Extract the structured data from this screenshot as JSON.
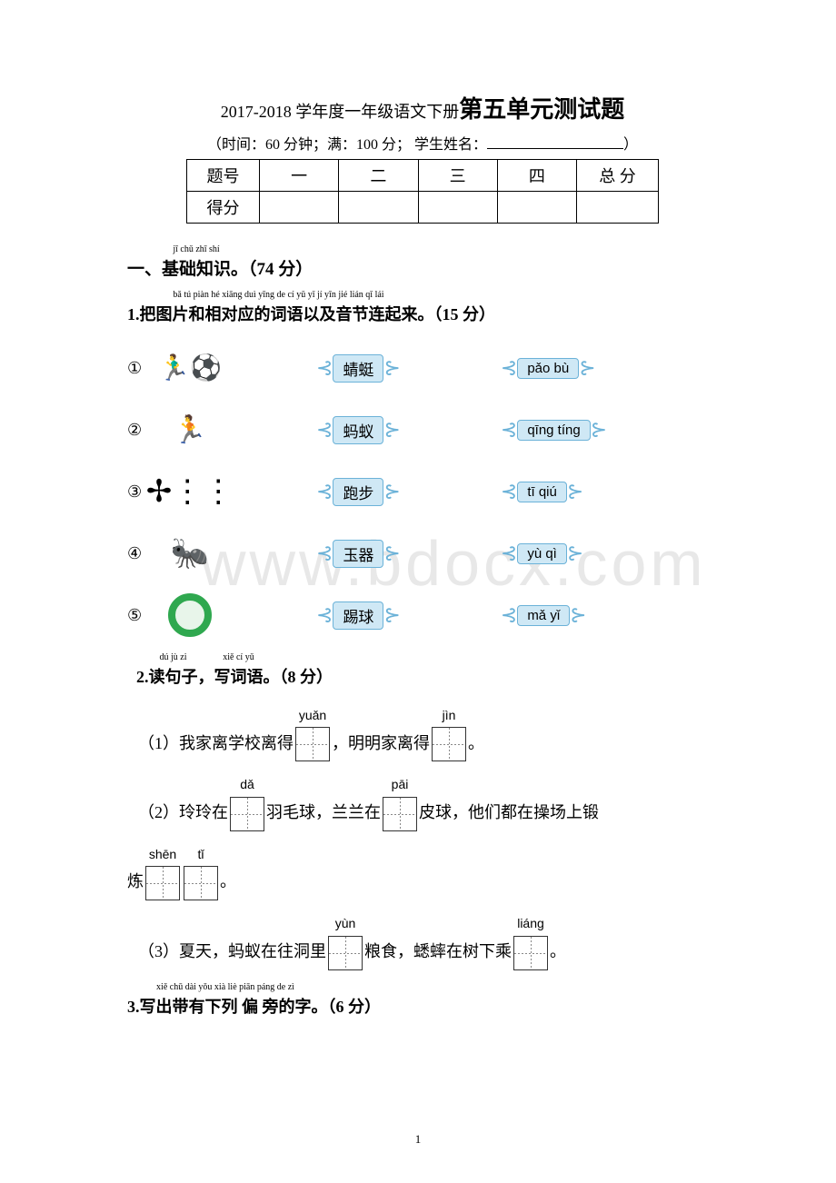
{
  "title_prefix": "2017-2018 学年度一年级语文下册",
  "title_main": "第五单元测试题",
  "subtitle_pre": "（时间：60 分钟；满：100 分；  学生姓名：",
  "subtitle_post": "）",
  "score_table": {
    "headers": [
      "题号",
      "一",
      "二",
      "三",
      "四",
      "总 分"
    ],
    "row2_label": "得分"
  },
  "section1": {
    "pinyin": "jī chǔ zhī shí",
    "text_pre": "一、",
    "text_main": "基础知识",
    "points": "。（74 分）"
  },
  "q1": {
    "pinyin": "bǎ tú piàn hé xiāng duì yīng de cí yǔ yǐ jí yīn jié lián qǐ lái",
    "text_pre": "1.",
    "text_main": "把图片和相对应的词语以及音节连起来",
    "points": "。（15 分）",
    "rows": [
      {
        "num": "①",
        "icon": "soccer",
        "word": "蜻蜓",
        "pinyin": "pǎo bù"
      },
      {
        "num": "②",
        "icon": "run",
        "word": "蚂蚁",
        "pinyin": "qīng tíng"
      },
      {
        "num": "③",
        "icon": "dragonfly",
        "word": "跑步",
        "pinyin": "tī qiú"
      },
      {
        "num": "④",
        "icon": "ant",
        "word": "玉器",
        "pinyin": "yù qì"
      },
      {
        "num": "⑤",
        "icon": "jade",
        "word": "踢球",
        "pinyin": "mǎ yǐ"
      }
    ]
  },
  "q2": {
    "pinyin_pre": "dú jù zi",
    "pinyin_post": "xiě cí yǔ",
    "text_pre": "2.",
    "text_a": "读句子",
    "comma": "，",
    "text_b": "写词语",
    "points": "。（8 分）",
    "s1": {
      "num": "（1）",
      "t1": "我家离学校离得",
      "b1": "yuǎn",
      "t2": " ，明明家离得",
      "b2": "jìn",
      "t3": " 。"
    },
    "s2": {
      "num": "（2）",
      "t1": "玲玲在",
      "b1": "dǎ",
      "t2": " 羽毛球，兰兰在",
      "b2": "pāi",
      "t3": " 皮球，他们都在操场上锻"
    },
    "s2b": {
      "t1": "炼",
      "b1": "shēn",
      "b2": "tǐ",
      "t2": " 。"
    },
    "s3": {
      "num": "（3）",
      "t1": "夏天，蚂蚁在往洞里",
      "b1": "yùn",
      "t2": " 粮食，蟋蟀在树下乘",
      "b2": "liáng",
      "t3": " 。"
    }
  },
  "q3": {
    "pinyin": "xiě chū dài yǒu xià liè  piān  páng de zì",
    "text_pre": "3.",
    "text_main": "写出带有下列 偏 旁的字",
    "points": "。（6 分）"
  },
  "watermark": "www.bdocx.com",
  "page_num": "1",
  "colors": {
    "label_bg": "#cfe8f5",
    "label_border": "#6bb2d8",
    "jade": "#2fa84f",
    "ant": "#b03018"
  }
}
